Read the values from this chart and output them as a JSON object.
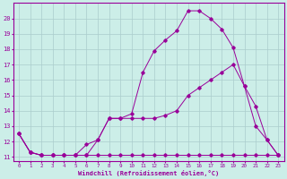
{
  "xlabel": "Windchill (Refroidissement éolien,°C)",
  "bg_color": "#cceee8",
  "grid_color": "#aacccc",
  "line_color": "#990099",
  "xlim": [
    -0.5,
    23.5
  ],
  "ylim": [
    10.7,
    21.0
  ],
  "yticks": [
    11,
    12,
    13,
    14,
    15,
    16,
    17,
    18,
    19,
    20
  ],
  "xticks": [
    0,
    1,
    2,
    3,
    4,
    5,
    6,
    7,
    8,
    9,
    10,
    11,
    12,
    13,
    14,
    15,
    16,
    17,
    18,
    19,
    20,
    21,
    22,
    23
  ],
  "line1_x": [
    0,
    1,
    2,
    3,
    4,
    5,
    6,
    7,
    8,
    9,
    10,
    11,
    12,
    13,
    14,
    15,
    16,
    17,
    18,
    19,
    20,
    21,
    22,
    23
  ],
  "line1_y": [
    12.5,
    11.3,
    11.1,
    11.1,
    11.1,
    11.1,
    11.1,
    11.1,
    11.1,
    11.1,
    11.1,
    11.1,
    11.1,
    11.1,
    11.1,
    11.1,
    11.1,
    11.1,
    11.1,
    11.1,
    11.1,
    11.1,
    11.1,
    11.1
  ],
  "line2_x": [
    0,
    1,
    2,
    3,
    4,
    5,
    6,
    7,
    8,
    9,
    10,
    11,
    12,
    13,
    14,
    15,
    16,
    17,
    18,
    19,
    20,
    21,
    22,
    23
  ],
  "line2_y": [
    12.5,
    11.3,
    11.1,
    11.1,
    11.1,
    11.1,
    11.8,
    12.1,
    13.5,
    13.5,
    13.8,
    16.5,
    17.9,
    18.6,
    19.2,
    20.5,
    20.5,
    20.0,
    19.3,
    18.1,
    15.6,
    14.3,
    12.1,
    11.1
  ],
  "line3_x": [
    0,
    1,
    2,
    3,
    4,
    5,
    6,
    7,
    8,
    9,
    10,
    11,
    12,
    13,
    14,
    15,
    16,
    17,
    18,
    19,
    20,
    21,
    22,
    23
  ],
  "line3_y": [
    12.5,
    11.3,
    11.1,
    11.1,
    11.1,
    11.1,
    11.1,
    12.1,
    13.5,
    13.5,
    13.5,
    13.5,
    13.5,
    13.7,
    14.0,
    15.0,
    15.5,
    16.0,
    16.5,
    17.0,
    15.6,
    13.0,
    12.1,
    11.1
  ]
}
